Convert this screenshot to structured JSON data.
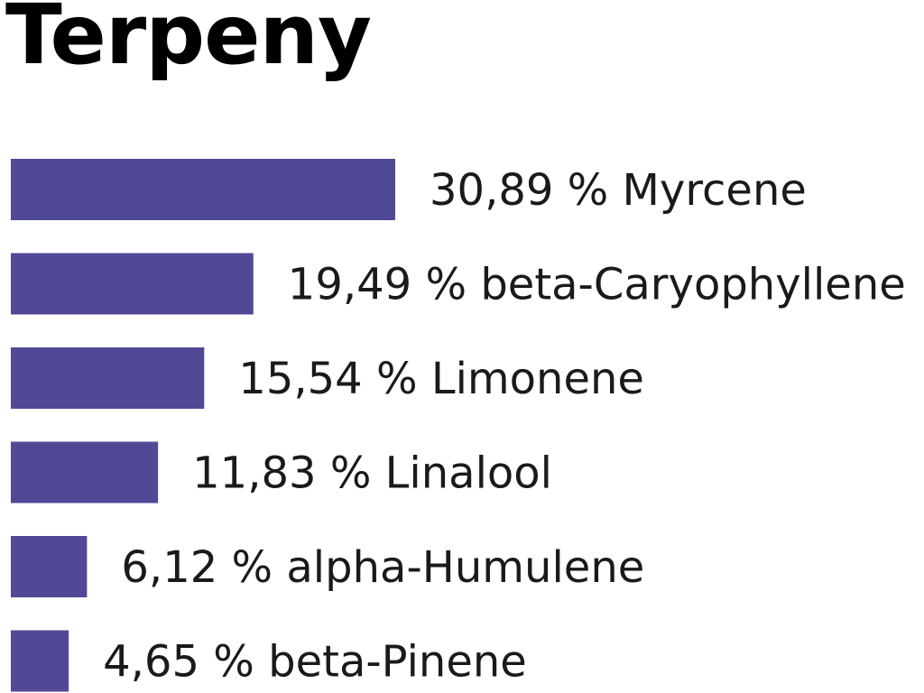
{
  "chart_data": {
    "type": "bar",
    "orientation": "horizontal",
    "title": "Terpeny",
    "unit": "%",
    "bar_color": "#4f4996",
    "categories": [
      "Myrcene",
      "beta-Caryophyllene",
      "Limonene",
      "Linalool",
      "alpha-Humulene",
      "beta-Pinene"
    ],
    "values": [
      30.89,
      19.49,
      15.54,
      11.83,
      6.12,
      4.65
    ],
    "labels": [
      "30,89 % Myrcene",
      "19,49 % beta-Caryophyllene",
      "15,54 % Limonene",
      "11,83 % Linalool",
      "6,12 % alpha-Humulene",
      "4,65 % beta-Pinene"
    ],
    "axes": "none",
    "grid": false,
    "legend": "none"
  }
}
